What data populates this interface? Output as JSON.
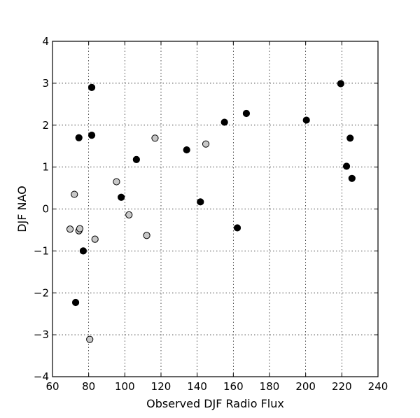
{
  "chart_data": {
    "type": "scatter",
    "title": "",
    "xlabel": "Observed DJF Radio Flux",
    "ylabel": "DJF NAO",
    "xlim": [
      60,
      240
    ],
    "ylim": [
      -4,
      4
    ],
    "xticks": [
      60,
      80,
      100,
      120,
      140,
      160,
      180,
      200,
      220,
      240
    ],
    "yticks": [
      -4,
      -3,
      -2,
      -1,
      0,
      1,
      2,
      3,
      4
    ],
    "xtick_labels": [
      "60",
      "80",
      "100",
      "120",
      "140",
      "160",
      "180",
      "200",
      "220",
      "240"
    ],
    "ytick_labels": [
      "−4",
      "−3",
      "−2",
      "−1",
      "0",
      "1",
      "2",
      "3",
      "4"
    ],
    "grid": true,
    "series": [
      {
        "color": "#000000",
        "points": [
          {
            "x": 81.7,
            "y": 2.9
          },
          {
            "x": 74.6,
            "y": 1.7
          },
          {
            "x": 81.7,
            "y": 1.76
          },
          {
            "x": 77.0,
            "y": -1.0
          },
          {
            "x": 72.8,
            "y": -2.23
          },
          {
            "x": 98.0,
            "y": 0.28
          },
          {
            "x": 106.4,
            "y": 1.18
          },
          {
            "x": 134.2,
            "y": 1.41
          },
          {
            "x": 141.8,
            "y": 0.17
          },
          {
            "x": 155.1,
            "y": 2.07
          },
          {
            "x": 162.2,
            "y": -0.45
          },
          {
            "x": 167.2,
            "y": 2.28
          },
          {
            "x": 200.4,
            "y": 2.12
          },
          {
            "x": 219.4,
            "y": 2.99
          },
          {
            "x": 222.6,
            "y": 1.02
          },
          {
            "x": 224.6,
            "y": 1.69
          },
          {
            "x": 225.6,
            "y": 0.73
          }
        ]
      },
      {
        "color": "#c8c8c8",
        "points": [
          {
            "x": 69.7,
            "y": -0.48
          },
          {
            "x": 72.1,
            "y": 0.35
          },
          {
            "x": 74.6,
            "y": -0.52
          },
          {
            "x": 75.1,
            "y": -0.47
          },
          {
            "x": 80.6,
            "y": -3.11
          },
          {
            "x": 83.5,
            "y": -0.72
          },
          {
            "x": 95.4,
            "y": 0.65
          },
          {
            "x": 102.3,
            "y": -0.14
          },
          {
            "x": 112.1,
            "y": -0.63
          },
          {
            "x": 116.7,
            "y": 1.69
          },
          {
            "x": 144.8,
            "y": 1.55
          }
        ]
      }
    ]
  }
}
